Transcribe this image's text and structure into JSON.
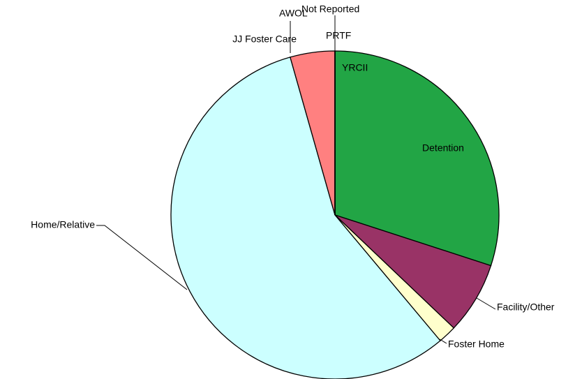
{
  "chart_data": {
    "type": "pie",
    "categories": [
      "Detention",
      "Facility/Other",
      "Foster Home",
      "Home/Relative",
      "JJ Foster Care",
      "AWOL",
      "Not Reported",
      "PRTF",
      "YRCII"
    ],
    "values": [
      30,
      7.1,
      1.8,
      56.7,
      4.4,
      0,
      0,
      0,
      0
    ],
    "colors": [
      "#22a545",
      "#993366",
      "#ffffcc",
      "#ccffff",
      "#ff8080",
      "#808080",
      "#c0c0c0",
      "#3366cc",
      "#ffcc00"
    ]
  }
}
